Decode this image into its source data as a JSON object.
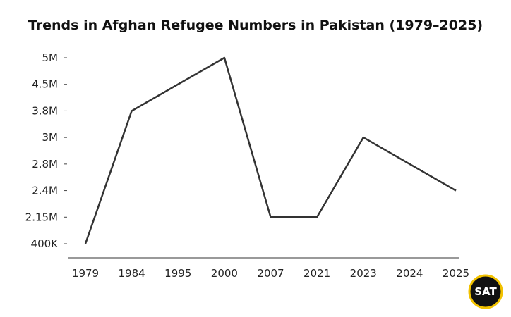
{
  "chart_data": {
    "type": "line",
    "title": "Trends in Afghan Refugee Numbers in Pakistan (1979–2025)",
    "categories": [
      "1979",
      "1984",
      "1995",
      "2000",
      "2007",
      "2021",
      "2023",
      "2024",
      "2025"
    ],
    "y_ticks": [
      "400K",
      "2.15M",
      "2.4M",
      "2.8M",
      "3M",
      "3.8M",
      "4.5M",
      "5M"
    ],
    "series": [
      {
        "values": [
          400000,
          3800000,
          null,
          5000000,
          2150000,
          2150000,
          3000000,
          null,
          2400000
        ]
      }
    ],
    "xlabel": "",
    "ylabel": "",
    "grid": false,
    "line_color": "#333333"
  },
  "logo": {
    "text": "SAT",
    "ring_color": "#f2c200"
  }
}
